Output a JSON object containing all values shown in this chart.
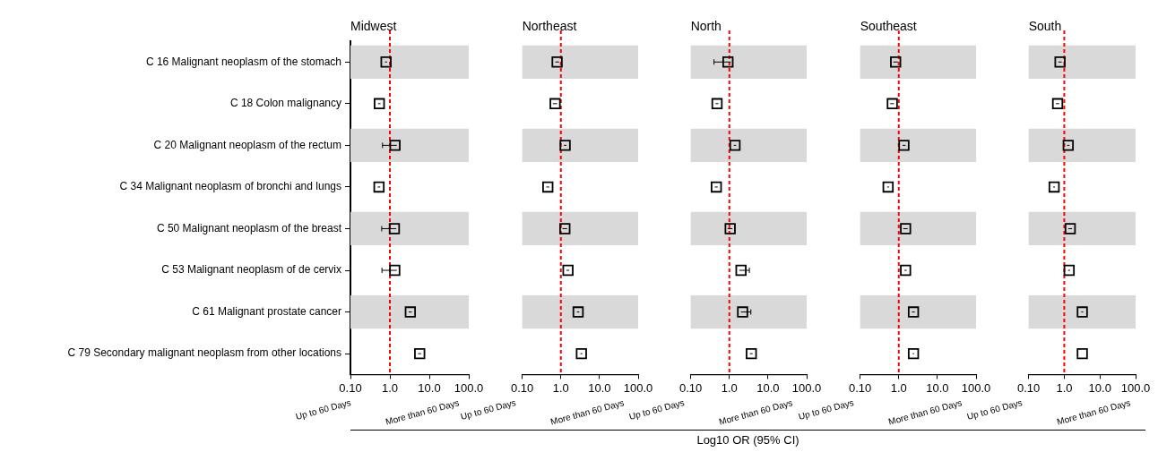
{
  "chart_data": [
    {
      "type": "scatter",
      "title": "Midwest",
      "orientation": "horizontal",
      "log": "x",
      "marker": "square",
      "legend": false,
      "grid": false,
      "categories": [
        "C 16 Malignant neoplasm of the stomach",
        "C 18 Colon malignancy",
        "C 20 Malignant neoplasm of the rectum",
        "C 34 Malignant neoplasm of bronchi and lungs",
        "C 50 Malignant neoplasm of the breast",
        "C 53 Malignant neoplasm of de cervix",
        "C 61 Malignant prostate cancer",
        "C 79 Secondary malignant neoplasm from other locations"
      ],
      "series": [
        {
          "color": "#000000",
          "values": [
            0.8,
            0.54,
            1.35,
            0.53,
            1.3,
            1.33,
            3.3,
            5.7
          ],
          "errors": [
            [
              0.75,
              0.85
            ],
            [
              0.5,
              0.58
            ],
            [
              0.65,
              1.5
            ],
            [
              0.49,
              0.57
            ],
            [
              0.62,
              1.45
            ],
            [
              0.63,
              1.5
            ],
            [
              3.0,
              3.6
            ],
            [
              5.2,
              6.2
            ]
          ]
        }
      ],
      "xlim": [
        0.1,
        100
      ],
      "xticks": [
        {
          "value": 0.1,
          "label": "0.10"
        },
        {
          "value": 1,
          "label": "1.0"
        },
        {
          "value": 10,
          "label": "10.0"
        },
        {
          "value": 100,
          "label": "100.0"
        }
      ],
      "ref_lines": [
        {
          "axis": "x",
          "value": 1,
          "color": "#ff0000",
          "line_style": "dashed"
        }
      ],
      "bands": [
        {
          "axis": "y",
          "from": "C 16 Malignant neoplasm of the stomach",
          "to": "C 16 Malignant neoplasm of the stomach",
          "color": "#d9d9d9"
        },
        {
          "axis": "y",
          "from": "C 20 Malignant neoplasm of the rectum",
          "to": "C 20 Malignant neoplasm of the rectum",
          "color": "#d9d9d9"
        },
        {
          "axis": "y",
          "from": "C 50 Malignant neoplasm of the breast",
          "to": "C 50 Malignant neoplasm of the breast",
          "color": "#d9d9d9"
        },
        {
          "axis": "y",
          "from": "C 61 Malignant prostate cancer",
          "to": "C 61 Malignant prostate cancer",
          "color": "#d9d9d9"
        }
      ],
      "annotations": [
        "Up to 60 Days",
        "More than 60 Days"
      ]
    },
    {
      "type": "scatter",
      "title": "Northeast",
      "orientation": "horizontal",
      "log": "x",
      "marker": "square",
      "legend": false,
      "grid": false,
      "tick_labels": "x",
      "categories": [
        "C 16 Malignant neoplasm of the stomach",
        "C 18 Colon malignancy",
        "C 20 Malignant neoplasm of the rectum",
        "C 34 Malignant neoplasm of bronchi and lungs",
        "C 50 Malignant neoplasm of the breast",
        "C 53 Malignant neoplasm of de cervix",
        "C 61 Malignant prostate cancer",
        "C 79 Secondary malignant neoplasm from other locations"
      ],
      "series": [
        {
          "color": "#000000",
          "values": [
            0.8,
            0.71,
            1.29,
            0.46,
            1.27,
            1.53,
            2.8,
            3.4
          ],
          "errors": [
            [
              0.72,
              0.9
            ],
            [
              0.62,
              0.8
            ],
            [
              1.2,
              1.4
            ],
            [
              0.42,
              0.5
            ],
            [
              1.1,
              1.45
            ],
            [
              1.4,
              1.65
            ],
            [
              2.6,
              3.0
            ],
            [
              3.2,
              3.6
            ]
          ]
        }
      ],
      "xlim": [
        0.1,
        100
      ],
      "xticks": [
        {
          "value": 0.1,
          "label": "0.10"
        },
        {
          "value": 1,
          "label": "1.0"
        },
        {
          "value": 10,
          "label": "10.0"
        },
        {
          "value": 100,
          "label": "100.0"
        }
      ],
      "ref_lines": [
        {
          "axis": "x",
          "value": 1,
          "color": "#ff0000",
          "line_style": "dashed"
        }
      ],
      "bands": [
        {
          "axis": "y",
          "from": "C 16 Malignant neoplasm of the stomach",
          "to": "C 16 Malignant neoplasm of the stomach",
          "color": "#d9d9d9"
        },
        {
          "axis": "y",
          "from": "C 20 Malignant neoplasm of the rectum",
          "to": "C 20 Malignant neoplasm of the rectum",
          "color": "#d9d9d9"
        },
        {
          "axis": "y",
          "from": "C 50 Malignant neoplasm of the breast",
          "to": "C 50 Malignant neoplasm of the breast",
          "color": "#d9d9d9"
        },
        {
          "axis": "y",
          "from": "C 61 Malignant prostate cancer",
          "to": "C 61 Malignant prostate cancer",
          "color": "#d9d9d9"
        }
      ],
      "annotations": [
        "Up to 60 Days",
        "More than 60 Days"
      ]
    },
    {
      "type": "scatter",
      "title": "North",
      "orientation": "horizontal",
      "log": "x",
      "marker": "square",
      "legend": false,
      "grid": false,
      "tick_labels": "x",
      "xlabel": "Log10 OR (95% CI)",
      "categories": [
        "C 16 Malignant neoplasm of the stomach",
        "C 18 Colon malignancy",
        "C 20 Malignant neoplasm of the rectum",
        "C 34 Malignant neoplasm of bronchi and lungs",
        "C 50 Malignant neoplasm of the breast",
        "C 53 Malignant neoplasm of de cervix",
        "C 61 Malignant prostate cancer",
        "C 79 Secondary malignant neoplasm from other locations"
      ],
      "series": [
        {
          "color": "#000000",
          "values": [
            0.92,
            0.48,
            1.4,
            0.46,
            1.05,
            2.0,
            2.2,
            3.7
          ],
          "errors": [
            [
              0.4,
              1.09
            ],
            [
              0.44,
              0.52
            ],
            [
              1.3,
              1.5
            ],
            [
              0.42,
              0.5
            ],
            [
              0.9,
              1.2
            ],
            [
              1.8,
              3.3
            ],
            [
              2.0,
              3.6
            ],
            [
              3.4,
              4.0
            ]
          ]
        }
      ],
      "xlim": [
        0.1,
        100
      ],
      "xticks": [
        {
          "value": 0.1,
          "label": "0.10"
        },
        {
          "value": 1,
          "label": "1.0"
        },
        {
          "value": 10,
          "label": "10.0"
        },
        {
          "value": 100,
          "label": "100.0"
        }
      ],
      "ref_lines": [
        {
          "axis": "x",
          "value": 1,
          "color": "#ff0000",
          "line_style": "dashed"
        }
      ],
      "bands": [
        {
          "axis": "y",
          "from": "C 16 Malignant neoplasm of the stomach",
          "to": "C 16 Malignant neoplasm of the stomach",
          "color": "#d9d9d9"
        },
        {
          "axis": "y",
          "from": "C 20 Malignant neoplasm of the rectum",
          "to": "C 20 Malignant neoplasm of the rectum",
          "color": "#d9d9d9"
        },
        {
          "axis": "y",
          "from": "C 50 Malignant neoplasm of the breast",
          "to": "C 50 Malignant neoplasm of the breast",
          "color": "#d9d9d9"
        },
        {
          "axis": "y",
          "from": "C 61 Malignant prostate cancer",
          "to": "C 61 Malignant prostate cancer",
          "color": "#d9d9d9"
        }
      ],
      "annotations": [
        "Up to 60 Days",
        "More than 60 Days"
      ]
    },
    {
      "type": "scatter",
      "title": "Southeast",
      "orientation": "horizontal",
      "log": "x",
      "marker": "square",
      "legend": false,
      "grid": false,
      "tick_labels": "x",
      "categories": [
        "C 16 Malignant neoplasm of the stomach",
        "C 18 Colon malignancy",
        "C 20 Malignant neoplasm of the rectum",
        "C 34 Malignant neoplasm of bronchi and lungs",
        "C 50 Malignant neoplasm of the breast",
        "C 53 Malignant neoplasm of de cervix",
        "C 61 Malignant prostate cancer",
        "C 79 Secondary malignant neoplasm from other locations"
      ],
      "series": [
        {
          "color": "#000000",
          "values": [
            0.83,
            0.68,
            1.36,
            0.53,
            1.5,
            1.5,
            2.4,
            2.4
          ],
          "errors": [
            [
              0.72,
              0.95
            ],
            [
              0.6,
              0.75
            ],
            [
              1.25,
              1.5
            ],
            [
              0.5,
              0.56
            ],
            [
              1.3,
              1.7
            ],
            [
              1.4,
              1.6
            ],
            [
              2.2,
              2.6
            ],
            [
              2.3,
              2.5
            ]
          ]
        }
      ],
      "xlim": [
        0.1,
        100
      ],
      "xticks": [
        {
          "value": 0.1,
          "label": "0.10"
        },
        {
          "value": 1,
          "label": "1.0"
        },
        {
          "value": 10,
          "label": "10.0"
        },
        {
          "value": 100,
          "label": "100.0"
        }
      ],
      "ref_lines": [
        {
          "axis": "x",
          "value": 1,
          "color": "#ff0000",
          "line_style": "dashed"
        }
      ],
      "bands": [
        {
          "axis": "y",
          "from": "C 16 Malignant neoplasm of the stomach",
          "to": "C 16 Malignant neoplasm of the stomach",
          "color": "#d9d9d9"
        },
        {
          "axis": "y",
          "from": "C 20 Malignant neoplasm of the rectum",
          "to": "C 20 Malignant neoplasm of the rectum",
          "color": "#d9d9d9"
        },
        {
          "axis": "y",
          "from": "C 50 Malignant neoplasm of the breast",
          "to": "C 50 Malignant neoplasm of the breast",
          "color": "#d9d9d9"
        },
        {
          "axis": "y",
          "from": "C 61 Malignant prostate cancer",
          "to": "C 61 Malignant prostate cancer",
          "color": "#d9d9d9"
        }
      ],
      "annotations": [
        "Up to 60 Days",
        "More than 60 Days"
      ]
    },
    {
      "type": "scatter",
      "title": "South",
      "orientation": "horizontal",
      "log": "x",
      "marker": "square",
      "legend": false,
      "grid": false,
      "tick_labels": "x",
      "categories": [
        "C 16 Malignant neoplasm of the stomach",
        "C 18 Colon malignancy",
        "C 20 Malignant neoplasm of the rectum",
        "C 34 Malignant neoplasm of bronchi and lungs",
        "C 50 Malignant neoplasm of the breast",
        "C 53 Malignant neoplasm of de cervix",
        "C 61 Malignant prostate cancer",
        "C 79 Secondary malignant neoplasm from other locations"
      ],
      "series": [
        {
          "color": "#000000",
          "values": [
            0.76,
            0.65,
            1.29,
            0.52,
            1.47,
            1.37,
            3.2,
            3.2
          ],
          "errors": [
            [
              0.68,
              0.85
            ],
            [
              0.58,
              0.72
            ],
            [
              1.2,
              1.4
            ],
            [
              0.49,
              0.55
            ],
            [
              1.3,
              1.65
            ],
            [
              1.28,
              1.46
            ],
            [
              3.0,
              3.4
            ],
            null
          ]
        }
      ],
      "xlim": [
        0.1,
        100
      ],
      "xticks": [
        {
          "value": 0.1,
          "label": "0.10"
        },
        {
          "value": 1,
          "label": "1.0"
        },
        {
          "value": 10,
          "label": "10.0"
        },
        {
          "value": 100,
          "label": "100.0"
        }
      ],
      "ref_lines": [
        {
          "axis": "x",
          "value": 1,
          "color": "#ff0000",
          "line_style": "dashed"
        }
      ],
      "bands": [
        {
          "axis": "y",
          "from": "C 16 Malignant neoplasm of the stomach",
          "to": "C 16 Malignant neoplasm of the stomach",
          "color": "#d9d9d9"
        },
        {
          "axis": "y",
          "from": "C 20 Malignant neoplasm of the rectum",
          "to": "C 20 Malignant neoplasm of the rectum",
          "color": "#d9d9d9"
        },
        {
          "axis": "y",
          "from": "C 50 Malignant neoplasm of the breast",
          "to": "C 50 Malignant neoplasm of the breast",
          "color": "#d9d9d9"
        },
        {
          "axis": "y",
          "from": "C 61 Malignant prostate cancer",
          "to": "C 61 Malignant prostate cancer",
          "color": "#d9d9d9"
        }
      ],
      "annotations": [
        "Up to 60 Days",
        "More than 60 Days"
      ]
    }
  ]
}
